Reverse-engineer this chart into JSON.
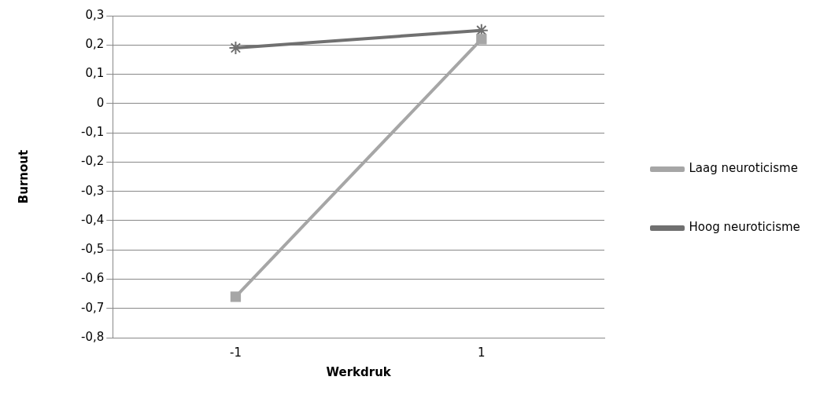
{
  "chart_data": {
    "type": "line",
    "xlabel": "Werkdruk",
    "ylabel": "Burnout",
    "categories": [
      "-1",
      "1"
    ],
    "series": [
      {
        "name": "Laag neuroticisme",
        "color": "#a6a6a6",
        "marker": "square",
        "values": [
          -0.66,
          0.22
        ]
      },
      {
        "name": "Hoog neuroticisme",
        "color": "#707070",
        "marker": "cross",
        "values": [
          0.19,
          0.25
        ]
      }
    ],
    "ylim": [
      -0.8,
      0.3
    ],
    "yticks": [
      {
        "value": 0.3,
        "label": "0,3"
      },
      {
        "value": 0.2,
        "label": "0,2"
      },
      {
        "value": 0.1,
        "label": "0,1"
      },
      0,
      {
        "value": -0.1,
        "label": "-0,1"
      },
      {
        "value": -0.2,
        "label": "-0,2"
      },
      {
        "value": -0.3,
        "label": "-0,3"
      },
      {
        "value": -0.4,
        "label": "-0,4"
      },
      {
        "value": -0.5,
        "label": "-0,5"
      },
      {
        "value": -0.6,
        "label": "-0,6"
      },
      {
        "value": -0.7,
        "label": "-0,7"
      },
      {
        "value": -0.8,
        "label": "-0,8"
      }
    ],
    "grid": "y",
    "legend": "right"
  }
}
